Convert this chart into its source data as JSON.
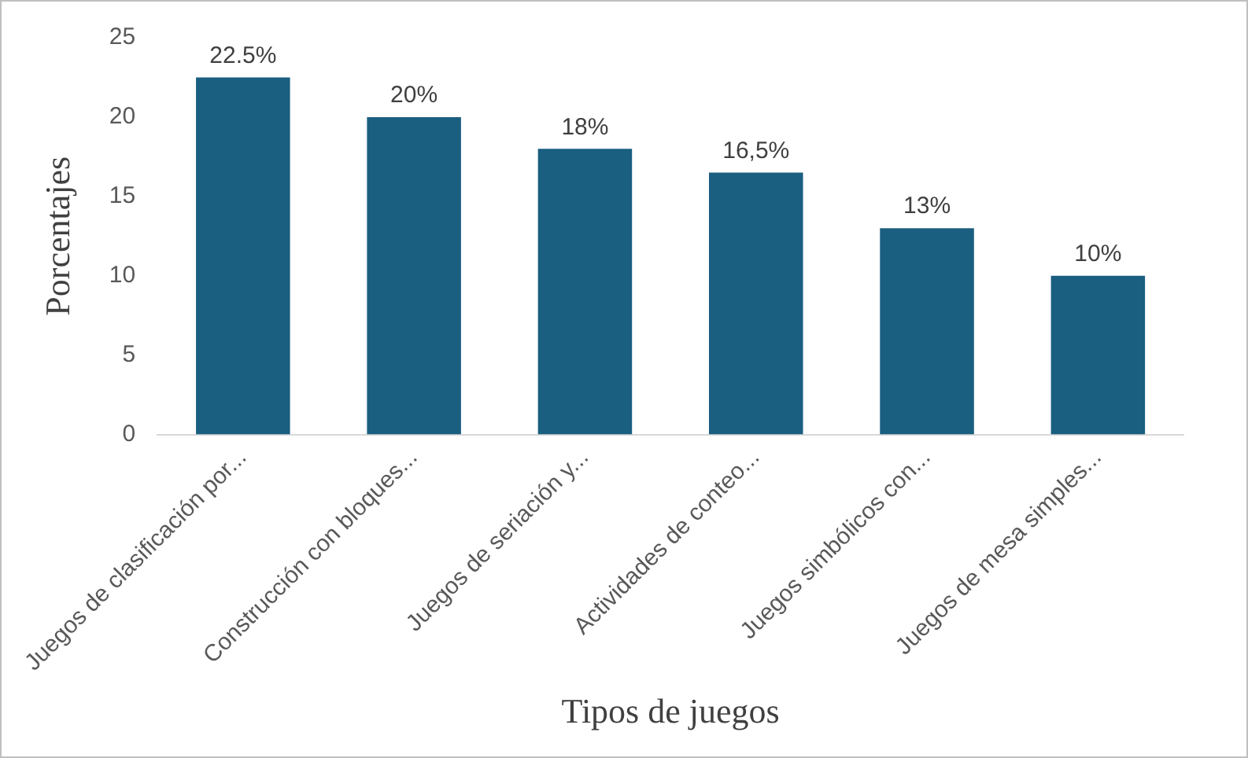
{
  "chart_data": {
    "type": "bar",
    "xlabel": "Tipos de juegos",
    "ylabel": "Porcentajes",
    "categories": [
      "Juegos de clasificación por...",
      "Construcción con bloques...",
      "Juegos de seriación y...",
      "Actividades de conteo...",
      "Juegos simbólicos con...",
      "Juegos de mesa simples..."
    ],
    "values": [
      22.5,
      20,
      18,
      16.5,
      13,
      10
    ],
    "value_labels": [
      "22.5%",
      "20%",
      "18%",
      "16,5%",
      "13%",
      "10%"
    ],
    "color": "#1a5e80",
    "ylim": [
      0,
      25
    ],
    "yticks": [
      0,
      5,
      10,
      15,
      20,
      25
    ],
    "grid": false,
    "legend": false
  }
}
